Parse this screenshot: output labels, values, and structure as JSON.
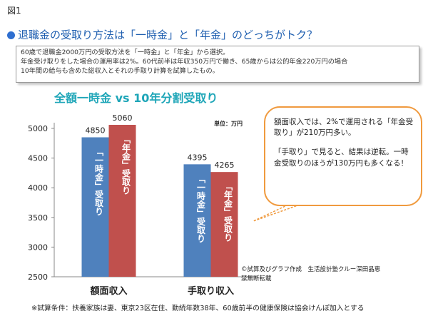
{
  "figure_label": "図1",
  "headline": "退職金の受取り方法は「一時金」と「年金」のどっちがトク？",
  "summary": [
    "60歳で退職金2000万円の受取方法を「一時金」と「年金」から選択。",
    "年金受け取りをした場合の運用率は2%。60代前半は年収350万円で働き、65歳からは公的年金220万円の場合",
    "10年間の給与も含めた総収入とそれの手取り計算を試算したもの。"
  ],
  "callout": {
    "p1": "額面収入では、2%で運用される「年金受取り」が210万円多い。",
    "p2": "「手取り」で見ると、結果は逆転。一時金受取りのほうが130万円も多くなる！"
  },
  "credit": [
    "©試算及びグラフ作成　生活設計塾クルー深田晶恵",
    "禁無断転載"
  ],
  "footnote": "※試算条件：扶養家族は妻、東京23区在住、勤続年数38年、60歳前半の健康保険は協会けんぽ加入とする",
  "colors": {
    "lump": "#4f81bd",
    "pension": "#c0504d",
    "title": "#1fa6b8",
    "headline": "#1f5fb0",
    "callout_border": "#f09a3e"
  },
  "chart_data": {
    "type": "bar",
    "title": "全額一時金 vs 10年分割受取り",
    "unit_label": "単位：万円",
    "categories": [
      "額面収入",
      "手取り収入"
    ],
    "series": [
      {
        "name": "「一時金」受取り",
        "values": [
          4850,
          4395
        ],
        "color": "#4f81bd"
      },
      {
        "name": "「年金」受取り",
        "values": [
          5060,
          4265
        ],
        "color": "#c0504d"
      }
    ],
    "ylim": [
      2500,
      5000
    ],
    "yticks": [
      2500,
      3000,
      3500,
      4000,
      4500,
      5000
    ],
    "grid": false,
    "legend": "none"
  }
}
